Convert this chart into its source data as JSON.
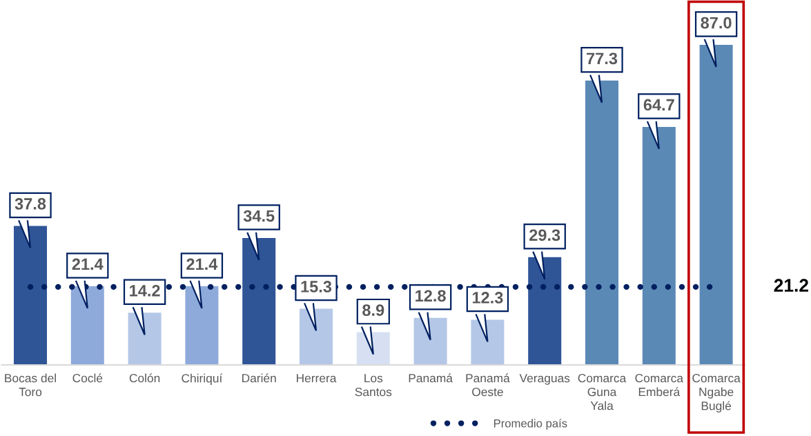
{
  "chart_data": {
    "type": "bar",
    "categories": [
      "Bocas del\nToro",
      "Coclé",
      "Colón",
      "Chiriquí",
      "Darién",
      "Herrera",
      "Los\nSantos",
      "Panamá",
      "Panamá\nOeste",
      "Veraguas",
      "Comarca\nGuna\nYala",
      "Comarca\nEmberá",
      "Comarca\nNgabe\nBuglé"
    ],
    "values": [
      37.8,
      21.4,
      14.2,
      21.4,
      34.5,
      15.3,
      8.9,
      12.8,
      12.3,
      29.3,
      77.3,
      64.7,
      87.0
    ],
    "value_labels": [
      "37.8",
      "21.4",
      "14.2",
      "21.4",
      "34.5",
      "15.3",
      "8.9",
      "12.8",
      "12.3",
      "29.3",
      "77.3",
      "64.7",
      "87.0"
    ],
    "colors": [
      "#2f5597",
      "#8eaadb",
      "#b4c7e7",
      "#8eaadb",
      "#2f5597",
      "#b4c7e7",
      "#d6e0f2",
      "#b4c7e7",
      "#b4c7e7",
      "#2f5597",
      "#5b89b6",
      "#5b89b6",
      "#5b89b6"
    ],
    "tick_labels": "x",
    "legend": "bottom",
    "ref_lines": [
      {
        "axis": "y",
        "value": 21.2,
        "label": "Promedio país",
        "color": "#002060",
        "line_style": "dotted"
      }
    ],
    "annotations": [
      "21.2"
    ]
  }
}
